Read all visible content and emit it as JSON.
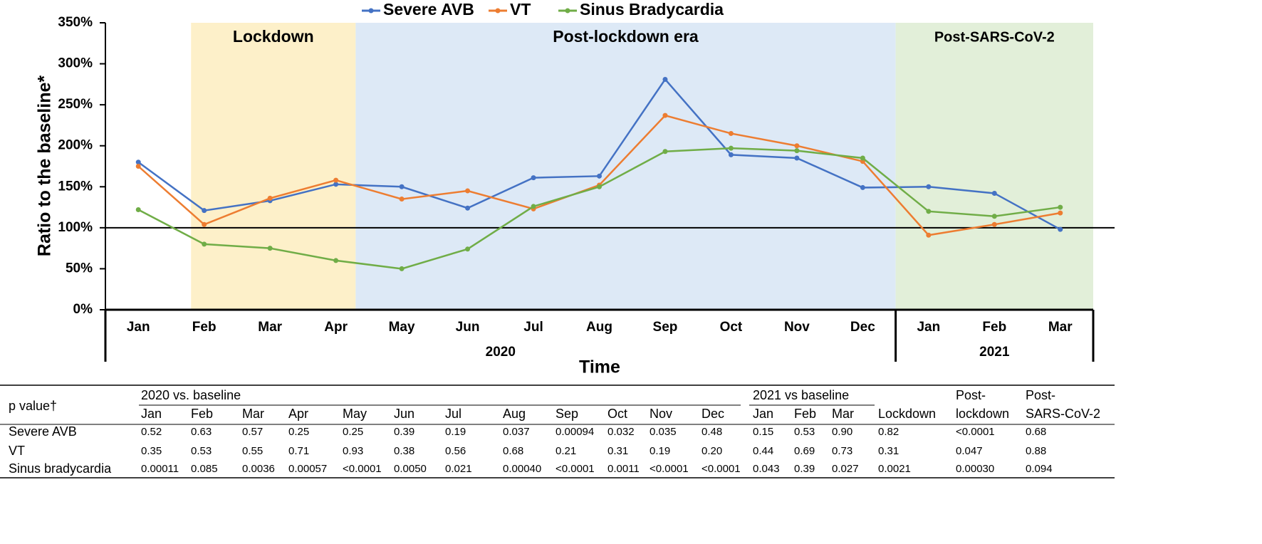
{
  "chart_data": {
    "type": "line",
    "categories": [
      "Jan",
      "Feb",
      "Mar",
      "Apr",
      "May",
      "Jun",
      "Jul",
      "Aug",
      "Sep",
      "Oct",
      "Nov",
      "Dec",
      "Jan",
      "Feb",
      "Mar"
    ],
    "groups": [
      {
        "label": "2020",
        "count": 12
      },
      {
        "label": "2021",
        "count": 3
      }
    ],
    "bands": [
      {
        "label": "Lockdown",
        "color": "#fdf0c9"
      },
      {
        "label": "Post-lockdown era",
        "color": "#dde9f6"
      },
      {
        "label": "Post-SARS-CoV-2",
        "color": "#e2efd9"
      }
    ],
    "series": [
      {
        "name": "Severe AVB",
        "color": "#4472c4",
        "values": [
          180,
          121,
          133,
          153,
          150,
          124,
          161,
          163,
          281,
          189,
          185,
          149,
          150,
          142,
          98
        ]
      },
      {
        "name": "VT",
        "color": "#ed7d31",
        "values": [
          175,
          104,
          136,
          158,
          135,
          145,
          123,
          152,
          237,
          215,
          200,
          181,
          91,
          104,
          118
        ]
      },
      {
        "name": "Sinus Bradycardia",
        "color": "#70ad47",
        "values": [
          122,
          80,
          75,
          60,
          50,
          74,
          126,
          150,
          193,
          197,
          194,
          185,
          120,
          114,
          125
        ]
      }
    ],
    "reference_line": 100,
    "ylabel": "Ratio to the baseline*",
    "xlabel": "Time",
    "ylim": [
      0,
      350
    ],
    "yticks": [
      {
        "value": 0,
        "label": "0%"
      },
      {
        "value": 50,
        "label": "50%"
      },
      {
        "value": 100,
        "label": "100%"
      },
      {
        "value": 150,
        "label": "150%"
      },
      {
        "value": 200,
        "label": "200%"
      },
      {
        "value": 250,
        "label": "250%"
      },
      {
        "value": 300,
        "label": "300%"
      },
      {
        "value": 350,
        "label": "350%"
      }
    ],
    "legend": "top"
  },
  "table": {
    "corner": "p value†",
    "group_headers": [
      "2020 vs. baseline",
      "2021 vs baseline"
    ],
    "columns": [
      "Jan",
      "Feb",
      "Mar",
      "Apr",
      "May",
      "Jun",
      "Jul",
      "Aug",
      "Sep",
      "Oct",
      "Nov",
      "Dec",
      "Jan",
      "Feb",
      "Mar",
      "Lockdown",
      "Post-lockdown",
      "Post-SARS-CoV-2"
    ],
    "rows": [
      {
        "label": "Severe AVB",
        "cells": [
          "0.52",
          "0.63",
          "0.57",
          "0.25",
          "0.25",
          "0.39",
          "0.19",
          "0.037",
          "0.00094",
          "0.032",
          "0.035",
          "0.48",
          "0.15",
          "0.53",
          "0.90",
          "0.82",
          "<0.0001",
          "0.68"
        ]
      },
      {
        "label": "VT",
        "cells": [
          "0.35",
          "0.53",
          "0.55",
          "0.71",
          "0.93",
          "0.38",
          "0.56",
          "0.68",
          "0.21",
          "0.31",
          "0.19",
          "0.20",
          "0.44",
          "0.69",
          "0.73",
          "0.31",
          "0.047",
          "0.88"
        ]
      },
      {
        "label": "Sinus bradycardia",
        "cells": [
          "0.00011",
          "0.085",
          "0.0036",
          "0.00057",
          "<0.0001",
          "0.0050",
          "0.021",
          "0.00040",
          "<0.0001",
          "0.0011",
          "<0.0001",
          "<0.0001",
          "0.043",
          "0.39",
          "0.027",
          "0.0021",
          "0.00030",
          "0.094"
        ]
      }
    ]
  }
}
